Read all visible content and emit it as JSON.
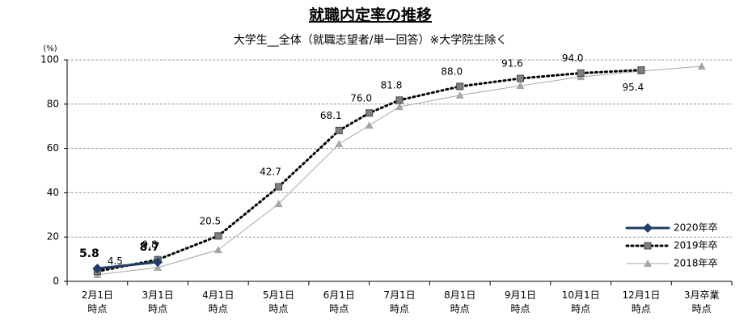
{
  "chart_data": {
    "type": "line",
    "title": "就職内定率の推移",
    "subtitle": "大学生__全体（就職志望者/単一回答）※大学院生除く",
    "y_unit": "(%)",
    "categories": [
      "2月1日\n時点",
      "3月1日\n時点",
      "4月1日\n時点",
      "5月1日\n時点",
      "6月1日\n時点",
      null,
      "7月1日\n時点",
      "8月1日\n時点",
      "9月1日\n時点",
      "10月1日\n時点",
      "12月1日\n時点",
      "3月卒業\n時点"
    ],
    "series": [
      {
        "name": "2020年卒",
        "color": "#1f3d66",
        "marker": "diamond",
        "line": "solid",
        "width": 3,
        "values": [
          5.8,
          8.7,
          null,
          null,
          null,
          null,
          null,
          null,
          null,
          null,
          null,
          null
        ],
        "value_labels": [
          "5.8",
          "8.7",
          null,
          null,
          null,
          null,
          null,
          null,
          null,
          null,
          null,
          null
        ]
      },
      {
        "name": "2019年卒",
        "color": "#000000",
        "marker_color": "#808080",
        "marker": "square",
        "line": "dotted",
        "width": 3,
        "values": [
          4.5,
          9.8,
          20.5,
          42.7,
          68.1,
          76.0,
          81.8,
          88.0,
          91.6,
          94.0,
          95.4,
          null
        ],
        "value_labels": [
          "4.5",
          "9.8",
          "20.5",
          "42.7",
          "68.1",
          "76.0",
          "81.8",
          "88.0",
          "91.6",
          "94.0",
          "95.4",
          null
        ]
      },
      {
        "name": "2018年卒",
        "color": "#a6a6a6",
        "marker_color": "#a6a6a6",
        "marker": "triangle",
        "line": "solid",
        "width": 1,
        "values": [
          3,
          6.2,
          14.2,
          35,
          62,
          70.4,
          78.8,
          84,
          88.3,
          92.3,
          94.9,
          97.1
        ]
      }
    ],
    "ylim": [
      0,
      100
    ],
    "yticks": [
      0,
      20,
      40,
      60,
      80,
      100
    ],
    "grid": true,
    "legend": "lower right"
  }
}
